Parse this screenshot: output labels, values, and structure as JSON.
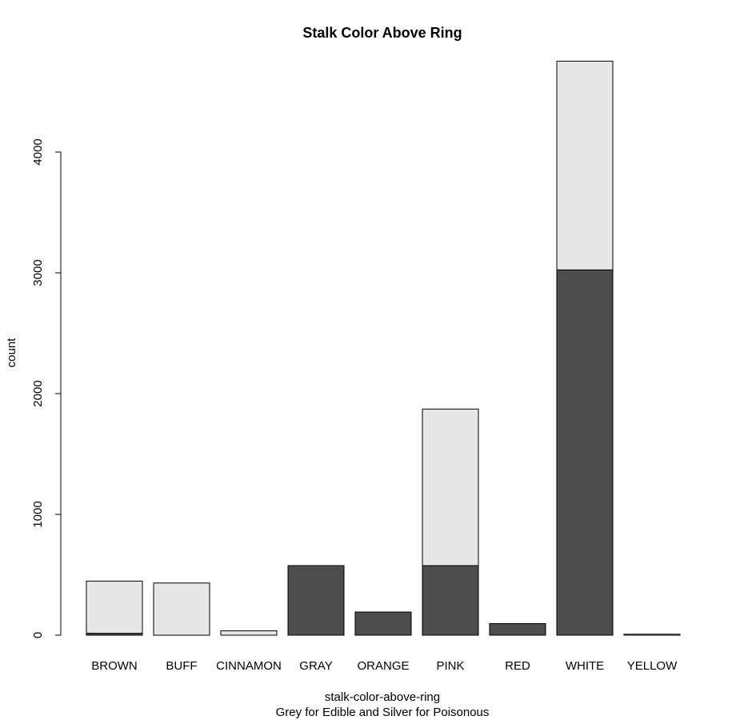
{
  "chart_data": {
    "type": "bar",
    "stacked": true,
    "title": "Stalk Color Above Ring",
    "xlabel": "stalk-color-above-ring",
    "subtitle": "Grey for Edible and Silver for Poisonous",
    "ylabel": "count",
    "ylim": [
      0,
      4800
    ],
    "yticks": [
      0,
      1000,
      2000,
      3000,
      4000
    ],
    "categories": [
      "BROWN",
      "BUFF",
      "CINNAMON",
      "GRAY",
      "ORANGE",
      "PINK",
      "RED",
      "WHITE",
      "YELLOW"
    ],
    "series": [
      {
        "color": "#4d4d4d",
        "values": [
          16,
          0,
          0,
          576,
          192,
          576,
          96,
          3024,
          0
        ]
      },
      {
        "color": "#e6e6e6",
        "values": [
          432,
          432,
          36,
          0,
          0,
          1296,
          0,
          1728,
          8
        ]
      }
    ],
    "grid": false,
    "legend": "none"
  }
}
